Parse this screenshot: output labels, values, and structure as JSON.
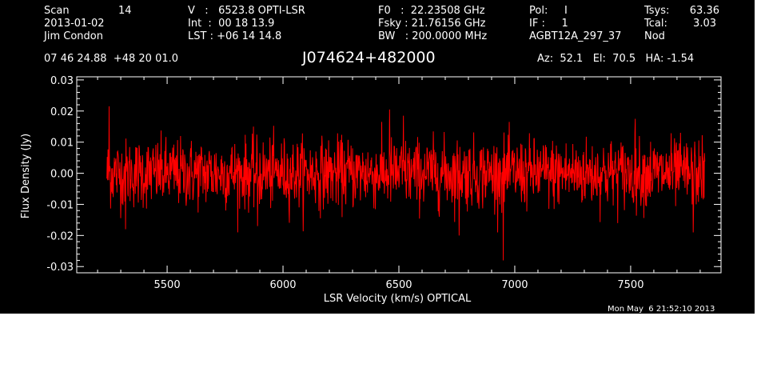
{
  "header": {
    "scan_label": "Scan",
    "scan_value": "14",
    "date": "2013-01-02",
    "observer": "Jim Condon",
    "velocity": "V   :   6523.8 OPTI-LSR",
    "integration": "Int  :  00 18 13.9",
    "lst": "LST : +06 14 14.8",
    "f0": "F0   :  22.23508 GHz",
    "fsky": "Fsky : 21.76156 GHz",
    "bandwidth": "BW   : 200.0000 MHz",
    "pol": "Pol:     I",
    "if": "IF :     1",
    "project": "AGBT12A_297_37",
    "tsys_label": "Tsys:",
    "tsys_value": "63.36",
    "tcal_label": "Tcal:",
    "tcal_value": "3.03",
    "switching": "Nod",
    "coordinates": "07 46 24.88  +48 20 01.0",
    "source": "J074624+482000",
    "pointing": "Az:  52.1   El:  70.5   HA: -1.54",
    "timestamp": "Mon May  6 21:52:10 2013"
  },
  "colors": {
    "background": "#000000",
    "axes": "#ffffff",
    "trace": "#ff0000"
  },
  "chart_data": {
    "type": "line",
    "title": "J074624+482000",
    "xlabel": "LSR Velocity (km/s) OPTICAL",
    "ylabel": "Flux Density (Jy)",
    "xlim": [
      5110,
      7890
    ],
    "ylim": [
      -0.032,
      0.031
    ],
    "x_ticks": [
      5500,
      6000,
      6500,
      7000,
      7500
    ],
    "x_tick_labels": [
      "5500",
      "6000",
      "6500",
      "7000",
      "7500"
    ],
    "y_ticks": [
      -0.03,
      -0.02,
      -0.01,
      0.0,
      0.01,
      0.02,
      0.03
    ],
    "y_tick_labels": [
      "-0.03",
      "-0.02",
      "-0.01",
      "0.00",
      "0.01",
      "0.02",
      "0.03"
    ],
    "grid": false,
    "legend": "none",
    "series": [
      {
        "x_range": [
          5240,
          7820
        ],
        "channels": 1600,
        "noise_rms": 0.0055,
        "mean": 0.0,
        "peaks": [
          {
            "x": 5250,
            "y": 0.0215
          },
          {
            "x": 6460,
            "y": 0.0205
          },
          {
            "x": 6520,
            "y": 0.0185
          },
          {
            "x": 7520,
            "y": 0.0175
          },
          {
            "x": 7770,
            "y": 0.0155
          }
        ],
        "troughs": [
          {
            "x": 6950,
            "y": -0.028
          },
          {
            "x": 5320,
            "y": -0.018
          },
          {
            "x": 6760,
            "y": -0.02
          },
          {
            "x": 7770,
            "y": -0.019
          },
          {
            "x": 5890,
            "y": -0.017
          }
        ]
      }
    ]
  }
}
